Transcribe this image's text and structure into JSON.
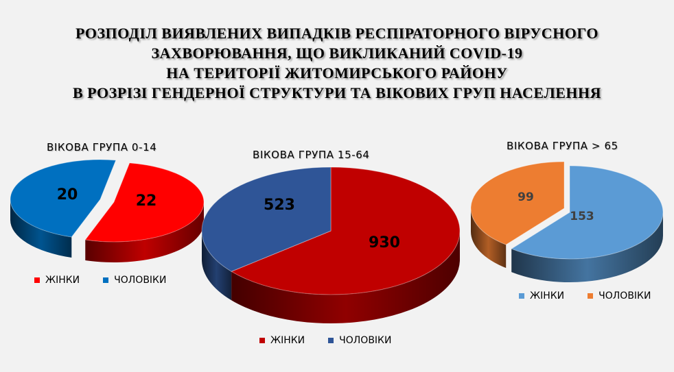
{
  "title_lines": [
    "РОЗПОДІЛ ВИЯВЛЕНИХ ВИПАДКІВ РЕСПІРАТОРНОГО ВІРУСНОГО",
    "ЗАХВОРЮВАННЯ, ЩО ВИКЛИКАНИЙ COVID-19",
    "НА ТЕРИТОРІЇ ЖИТОМИРСЬКОГО РАЙОНУ",
    "В РОЗРІЗІ ГЕНДЕРНОЇ СТРУКТУРИ ТА ВІКОВИХ ГРУП НАСЕЛЕННЯ"
  ],
  "chart_data": [
    {
      "type": "pie",
      "title": "ВІКОВА ГРУПА 0-14",
      "categories": [
        "ЖІНКИ",
        "ЧОЛОВІКИ"
      ],
      "values": [
        22,
        20
      ],
      "colors": [
        "#ff0000",
        "#0070c0"
      ],
      "legend": "bottom"
    },
    {
      "type": "pie",
      "title": "ВІКОВА ГРУПА 15-64",
      "categories": [
        "ЖІНКИ",
        "ЧОЛОВІКИ"
      ],
      "values": [
        930,
        523
      ],
      "colors": [
        "#c00000",
        "#2f5597"
      ],
      "legend": "bottom"
    },
    {
      "type": "pie",
      "title": "ВІКОВА ГРУПА > 65",
      "categories": [
        "ЖІНКИ",
        "ЧОЛОВІКИ"
      ],
      "values": [
        153,
        99
      ],
      "colors": [
        "#5b9bd5",
        "#ed7d31"
      ],
      "legend": "bottom"
    }
  ]
}
